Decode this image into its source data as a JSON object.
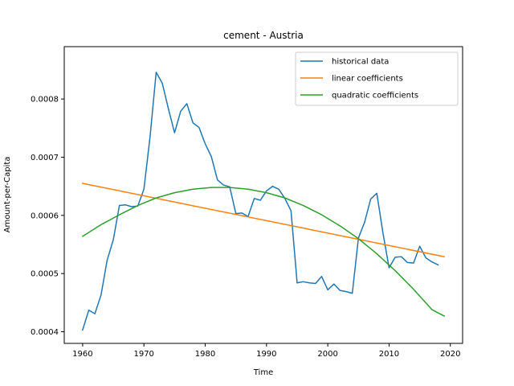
{
  "chart_data": {
    "type": "line",
    "title": "cement - Austria",
    "xlabel": "Time",
    "ylabel": "Amount-per-Capita",
    "xlim": [
      1957,
      2022
    ],
    "ylim": [
      0.00038,
      0.00089
    ],
    "xticks": [
      1960,
      1970,
      1980,
      1990,
      2000,
      2010,
      2020
    ],
    "xtick_labels": [
      "1960",
      "1970",
      "1980",
      "1990",
      "2000",
      "2010",
      "2020"
    ],
    "yticks": [
      0.0004,
      0.0005,
      0.0006,
      0.0007,
      0.0008
    ],
    "ytick_labels": [
      "0.0004",
      "0.0005",
      "0.0006",
      "0.0007",
      "0.0008"
    ],
    "legend_position": "top-right",
    "series": [
      {
        "name": "historical data",
        "color": "#1f77b4",
        "x": [
          1960,
          1961,
          1962,
          1963,
          1964,
          1965,
          1966,
          1967,
          1968,
          1969,
          1970,
          1971,
          1972,
          1973,
          1974,
          1975,
          1976,
          1977,
          1978,
          1979,
          1980,
          1981,
          1982,
          1983,
          1984,
          1985,
          1986,
          1987,
          1988,
          1989,
          1990,
          1991,
          1992,
          1993,
          1994,
          1995,
          1996,
          1997,
          1998,
          1999,
          2000,
          2001,
          2002,
          2003,
          2004,
          2005,
          2006,
          2007,
          2008,
          2009,
          2010,
          2011,
          2012,
          2013,
          2014,
          2015,
          2016,
          2017,
          2018
        ],
        "y": [
          0.000403,
          0.000437,
          0.000431,
          0.000463,
          0.000523,
          0.000558,
          0.000617,
          0.000618,
          0.000615,
          0.000616,
          0.000645,
          0.000735,
          0.000846,
          0.000827,
          0.000783,
          0.000742,
          0.000779,
          0.000792,
          0.000759,
          0.000751,
          0.000723,
          0.000701,
          0.000661,
          0.000652,
          0.000649,
          0.000603,
          0.000604,
          0.000598,
          0.000629,
          0.000626,
          0.000642,
          0.00065,
          0.000645,
          0.000629,
          0.000608,
          0.000484,
          0.000486,
          0.000484,
          0.000483,
          0.000495,
          0.000472,
          0.000482,
          0.000471,
          0.000469,
          0.000466,
          0.000561,
          0.000588,
          0.000628,
          0.000638,
          0.00057,
          0.00051,
          0.000528,
          0.000529,
          0.000519,
          0.000518,
          0.000547,
          0.000527,
          0.00052,
          0.000515
        ]
      },
      {
        "name": "linear coefficients",
        "color": "#ff7f0e",
        "x": [
          1960,
          2019
        ],
        "y": [
          0.000655,
          0.000529
        ]
      },
      {
        "name": "quadratic coefficients",
        "color": "#2ca02c",
        "x": [
          1960,
          1963,
          1966,
          1969,
          1972,
          1975,
          1978,
          1981,
          1983,
          1984,
          1987,
          1990,
          1993,
          1996,
          1999,
          2002,
          2005,
          2008,
          2011,
          2014,
          2017,
          2019
        ],
        "y": [
          0.000564,
          0.000584,
          0.000601,
          0.000617,
          0.00063,
          0.000639,
          0.000645,
          0.000648,
          0.000648,
          0.000648,
          0.000645,
          0.000639,
          0.00063,
          0.000617,
          0.000601,
          0.000582,
          0.00056,
          0.000534,
          0.000505,
          0.000473,
          0.000438,
          0.000427
        ]
      }
    ]
  }
}
